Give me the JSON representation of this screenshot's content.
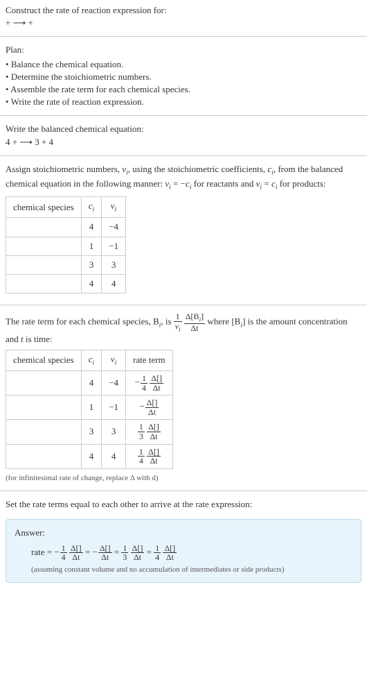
{
  "intro": {
    "line1": "Construct the rate of reaction expression for:",
    "line2": "+  ⟶  +"
  },
  "plan": {
    "heading": "Plan:",
    "items": [
      "Balance the chemical equation.",
      "Determine the stoichiometric numbers.",
      "Assemble the rate term for each chemical species.",
      "Write the rate of reaction expression."
    ]
  },
  "balanced": {
    "line1": "Write the balanced chemical equation:",
    "line2": "4  +   ⟶  3  + 4"
  },
  "stoich": {
    "text_pre": "Assign stoichiometric numbers, ",
    "nu": "ν",
    "text_mid1": ", using the stoichiometric coefficients, ",
    "c": "c",
    "text_mid2": ", from the balanced chemical equation in the following manner: ",
    "eq1": " = −",
    "text_mid3": " for reactants and ",
    "eq2": " = ",
    "text_end": " for products:",
    "col1": "chemical species",
    "col2_sym": "c",
    "col3_sym": "ν",
    "rows": [
      {
        "c": "4",
        "nu": "−4"
      },
      {
        "c": "1",
        "nu": "−1"
      },
      {
        "c": "3",
        "nu": "3"
      },
      {
        "c": "4",
        "nu": "4"
      }
    ]
  },
  "rateterm": {
    "text_pre": "The rate term for each chemical species, B",
    "text_mid1": ", is ",
    "frac1_num": "1",
    "frac1_den_sym": "ν",
    "frac2_num": "Δ[B",
    "frac2_num_end": "]",
    "frac2_den": "Δt",
    "text_mid2": " where [B",
    "text_mid3": "] is the amount concentration and ",
    "t": "t",
    "text_end": " is time:",
    "col1": "chemical species",
    "col2_sym": "c",
    "col3_sym": "ν",
    "col4": "rate term",
    "rows": [
      {
        "c": "4",
        "nu": "−4",
        "sign": "−",
        "coef_num": "1",
        "coef_den": "4",
        "d_num": "Δ[]",
        "d_den": "Δt"
      },
      {
        "c": "1",
        "nu": "−1",
        "sign": "−",
        "coef_num": "",
        "coef_den": "",
        "d_num": "Δ[]",
        "d_den": "Δt"
      },
      {
        "c": "3",
        "nu": "3",
        "sign": "",
        "coef_num": "1",
        "coef_den": "3",
        "d_num": "Δ[]",
        "d_den": "Δt"
      },
      {
        "c": "4",
        "nu": "4",
        "sign": "",
        "coef_num": "1",
        "coef_den": "4",
        "d_num": "Δ[]",
        "d_den": "Δt"
      }
    ],
    "footnote": "(for infinitesimal rate of change, replace Δ with d)"
  },
  "final": {
    "text": "Set the rate terms equal to each other to arrive at the rate expression:"
  },
  "answer": {
    "title": "Answer:",
    "rate_label": "rate = ",
    "terms": [
      {
        "sign": "−",
        "coef_num": "1",
        "coef_den": "4",
        "d_num": "Δ[]",
        "d_den": "Δt"
      },
      {
        "sign": "−",
        "coef_num": "",
        "coef_den": "",
        "d_num": "Δ[]",
        "d_den": "Δt"
      },
      {
        "sign": "",
        "coef_num": "1",
        "coef_den": "3",
        "d_num": "Δ[]",
        "d_den": "Δt"
      },
      {
        "sign": "",
        "coef_num": "1",
        "coef_den": "4",
        "d_num": "Δ[]",
        "d_den": "Δt"
      }
    ],
    "eq": " = ",
    "note": "(assuming constant volume and no accumulation of intermediates or side products)"
  },
  "style": {
    "background": "#ffffff",
    "text_color": "#333333",
    "border_color": "#cccccc",
    "answer_bg": "#e8f4fb",
    "answer_border": "#b8dceb",
    "base_fontsize": 13,
    "footnote_fontsize": 11,
    "table_cell_padding": "4px 10px"
  }
}
